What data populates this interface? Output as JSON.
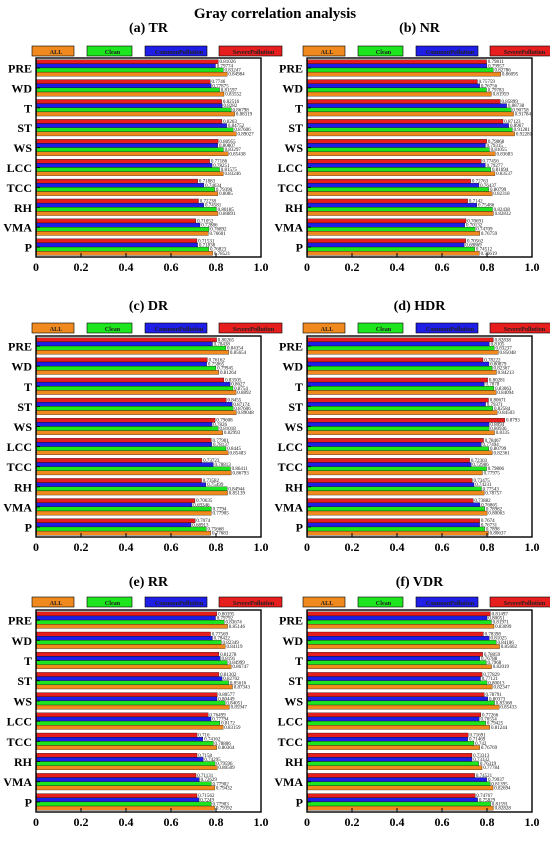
{
  "title": "Gray correlation analysis",
  "colors": {
    "ALL": "#f08a1e",
    "Clean": "#1ee61e",
    "CommonPollution": "#1e1ee6",
    "SeverePollution": "#e61e1e"
  },
  "chart_data": [
    {
      "type": "bar",
      "orientation": "horizontal",
      "title": "(a) TR",
      "legend": [
        "ALL",
        "Clean",
        "CommonPollution",
        "SeverePollution"
      ],
      "legend_placement": "top",
      "xlim": [
        0,
        1.0
      ],
      "xticks": [
        "0",
        "0.2",
        "0.4",
        "0.6",
        "0.8",
        "1.0"
      ],
      "categories": [
        "PRE",
        "WD",
        "T",
        "ST",
        "WS",
        "LCC",
        "TCC",
        "RH",
        "VMA",
        "P"
      ],
      "series": [
        {
          "name": "SeverePollution",
          "values": [
            0.81026,
            0.7746,
            0.82516,
            0.8263,
            0.80955,
            0.77186,
            0.71883,
            0.72238,
            0.71052,
            0.71531
          ]
        },
        {
          "name": "CommonPollution",
          "values": [
            0.79774,
            0.77875,
            0.8282,
            0.84752,
            0.80807,
            0.78251,
            0.74634,
            0.74581,
            0.72886,
            0.71838
          ]
        },
        {
          "name": "Clean",
          "values": [
            0.83247,
            0.81597,
            0.86798,
            0.87606,
            0.83297,
            0.81575,
            0.79396,
            0.80185,
            0.76892,
            0.76823
          ]
        },
        {
          "name": "ALL",
          "values": [
            0.84984,
            0.83552,
            0.88319,
            0.89027,
            0.85438,
            0.83246,
            0.8085,
            0.80891,
            0.76601,
            0.78521
          ]
        }
      ]
    },
    {
      "type": "bar",
      "orientation": "horizontal",
      "title": "(b) NR",
      "legend": [
        "ALL",
        "Clean",
        "CommonPollution",
        "SeverePollution"
      ],
      "legend_placement": "top",
      "xlim": [
        0,
        1.0
      ],
      "xticks": [
        "0",
        "0.2",
        "0.4",
        "0.6",
        "0.8",
        "1.0"
      ],
      "categories": [
        "PRE",
        "WD",
        "T",
        "ST",
        "WS",
        "LCC",
        "TCC",
        "RH",
        "VMA",
        "P"
      ],
      "series": [
        {
          "name": "SeverePollution",
          "values": [
            0.79811,
            0.75759,
            0.85899,
            0.87123,
            0.79868,
            0.77456,
            0.72763,
            0.7142,
            0.70691,
            0.70562
          ]
        },
        {
          "name": "CommonPollution",
          "values": [
            0.79957,
            0.76756,
            0.88738,
            0.8967,
            0.79315,
            0.79277,
            0.76437,
            0.75486,
            0.70132,
            0.69869
          ]
        },
        {
          "name": "Clean",
          "values": [
            0.82786,
            0.79783,
            0.90758,
            0.91281,
            0.81055,
            0.81694,
            0.80799,
            0.82438,
            0.74709,
            0.74512
          ]
        },
        {
          "name": "ALL",
          "values": [
            0.86095,
            0.81959,
            0.91784,
            0.92281,
            0.83683,
            0.83537,
            0.82318,
            0.82832,
            0.76759,
            0.76619
          ]
        }
      ]
    },
    {
      "type": "bar",
      "orientation": "horizontal",
      "title": "(c) DR",
      "legend": [
        "ALL",
        "Clean",
        "CommonPollution",
        "SeverePollution"
      ],
      "legend_placement": "top",
      "xlim": [
        0,
        1.0
      ],
      "xticks": [
        "0",
        "0.2",
        "0.4",
        "0.6",
        "0.8",
        "1.0"
      ],
      "categories": [
        "PRE",
        "WD",
        "T",
        "ST",
        "WS",
        "LCC",
        "TCC",
        "RH",
        "VMA",
        "P"
      ],
      "series": [
        {
          "name": "SeverePollution",
          "values": [
            0.80265,
            0.76162,
            0.83505,
            0.8455,
            0.79608,
            0.77901,
            0.73723,
            0.73582,
            0.70635,
            0.7074
          ]
        },
        {
          "name": "CommonPollution",
          "values": [
            0.78438,
            0.75865,
            0.8627,
            0.87174,
            0.7826,
            0.78137,
            0.78813,
            0.75499,
            0.69346,
            0.68913
          ]
        },
        {
          "name": "Clean",
          "values": [
            0.84354,
            0.79945,
            0.8754,
            0.87606,
            0.81018,
            0.8445,
            0.86411,
            0.84944,
            0.7794,
            0.75668
          ]
        },
        {
          "name": "ALL",
          "values": [
            0.85654,
            0.81264,
            0.8892,
            0.89048,
            0.82993,
            0.85483,
            0.86793,
            0.85139,
            0.77905,
            0.77683
          ]
        }
      ]
    },
    {
      "type": "bar",
      "orientation": "horizontal",
      "title": "(d) HDR",
      "legend": [
        "ALL",
        "Clean",
        "CommonPollution",
        "SeverePollution"
      ],
      "legend_placement": "top",
      "xlim": [
        0,
        1.0
      ],
      "xticks": [
        "0",
        "0.2",
        "0.4",
        "0.6",
        "0.8",
        "1.0"
      ],
      "categories": [
        "PRE",
        "WD",
        "T",
        "ST",
        "WS",
        "LCC",
        "TCC",
        "RH",
        "VMA",
        "P"
      ],
      "series": [
        {
          "name": "SeverePollution",
          "values": [
            0.82838,
            0.78222,
            0.80281,
            0.80671,
            0.8793,
            0.78467,
            0.72303,
            0.73475,
            0.73882,
            0.7674
          ]
        },
        {
          "name": "CommonPollution",
          "values": [
            0.8105,
            0.80879,
            0.7878,
            0.79371,
            0.8094,
            0.77494,
            0.72986,
            0.74231,
            0.76865,
            0.76731
          ]
        },
        {
          "name": "Clean",
          "values": [
            0.83237,
            0.82367,
            0.83063,
            0.82584,
            0.80936,
            0.80799,
            0.79806,
            0.77543,
            0.78982,
            0.7898
          ]
        },
        {
          "name": "ALL",
          "values": [
            0.85048,
            0.84213,
            0.84094,
            0.84503,
            0.8335,
            0.82361,
            0.77975,
            0.78757,
            0.80063,
            0.80637
          ]
        }
      ]
    },
    {
      "type": "bar",
      "orientation": "horizontal",
      "title": "(e) RR",
      "legend": [
        "ALL",
        "Clean",
        "CommonPollution",
        "SeverePollution"
      ],
      "legend_placement": "top",
      "xlim": [
        0,
        1.0
      ],
      "xticks": [
        "0",
        "0.2",
        "0.4",
        "0.6",
        "0.8",
        "1.0"
      ],
      "categories": [
        "PRE",
        "WD",
        "T",
        "ST",
        "WS",
        "LCC",
        "TCC",
        "RH",
        "VMA",
        "P"
      ],
      "series": [
        {
          "name": "SeverePollution",
          "values": [
            0.80395,
            0.77569,
            0.81278,
            0.81302,
            0.80577,
            0.76499,
            0.716,
            0.7158,
            0.71131,
            0.71562
          ]
        },
        {
          "name": "CommonPollution",
          "values": [
            0.79792,
            0.78422,
            0.8191,
            0.82702,
            0.80449,
            0.77794,
            0.74162,
            0.74295,
            0.72629,
            0.7249
          ]
        },
        {
          "name": "Clean",
          "values": [
            0.83674,
            0.82349,
            0.84999,
            0.85616,
            0.84051,
            0.8172,
            0.78806,
            0.79596,
            0.77902,
            0.77903
          ]
        },
        {
          "name": "ALL",
          "values": [
            0.85146,
            0.84119,
            0.86747,
            0.87343,
            0.85947,
            0.83159,
            0.80364,
            0.80509,
            0.79432,
            0.79392
          ]
        }
      ]
    },
    {
      "type": "bar",
      "orientation": "horizontal",
      "title": "(f) VDR",
      "legend": [
        "ALL",
        "Clean",
        "CommonPollution",
        "SeverePollution"
      ],
      "legend_placement": "top",
      "xlim": [
        0,
        1.0
      ],
      "xticks": [
        "0",
        "0.2",
        "0.4",
        "0.6",
        "0.8",
        "1.0"
      ],
      "categories": [
        "PRE",
        "WD",
        "T",
        "ST",
        "WS",
        "LCC",
        "TCC",
        "RH",
        "VMA",
        "P"
      ],
      "series": [
        {
          "name": "SeverePollution",
          "values": [
            0.81497,
            0.78398,
            0.78059,
            0.77829,
            0.78791,
            0.77266,
            0.71691,
            0.73313,
            0.74521,
            0.74767
          ]
        },
        {
          "name": "CommonPollution",
          "values": [
            0.80051,
            0.81025,
            0.76788,
            0.77121,
            0.80373,
            0.76554,
            0.71469,
            0.73332,
            0.79937,
            0.75829
          ]
        },
        {
          "name": "Clean",
          "values": [
            0.81971,
            0.84106,
            0.7968,
            0.80013,
            0.83368,
            0.79425,
            0.742,
            0.76319,
            0.81395,
            0.81591
          ]
        },
        {
          "name": "ALL",
          "values": [
            0.83099,
            0.85602,
            0.82019,
            0.82347,
            0.85433,
            0.81244,
            0.76769,
            0.77784,
            0.82694,
            0.82828
          ]
        }
      ]
    }
  ]
}
